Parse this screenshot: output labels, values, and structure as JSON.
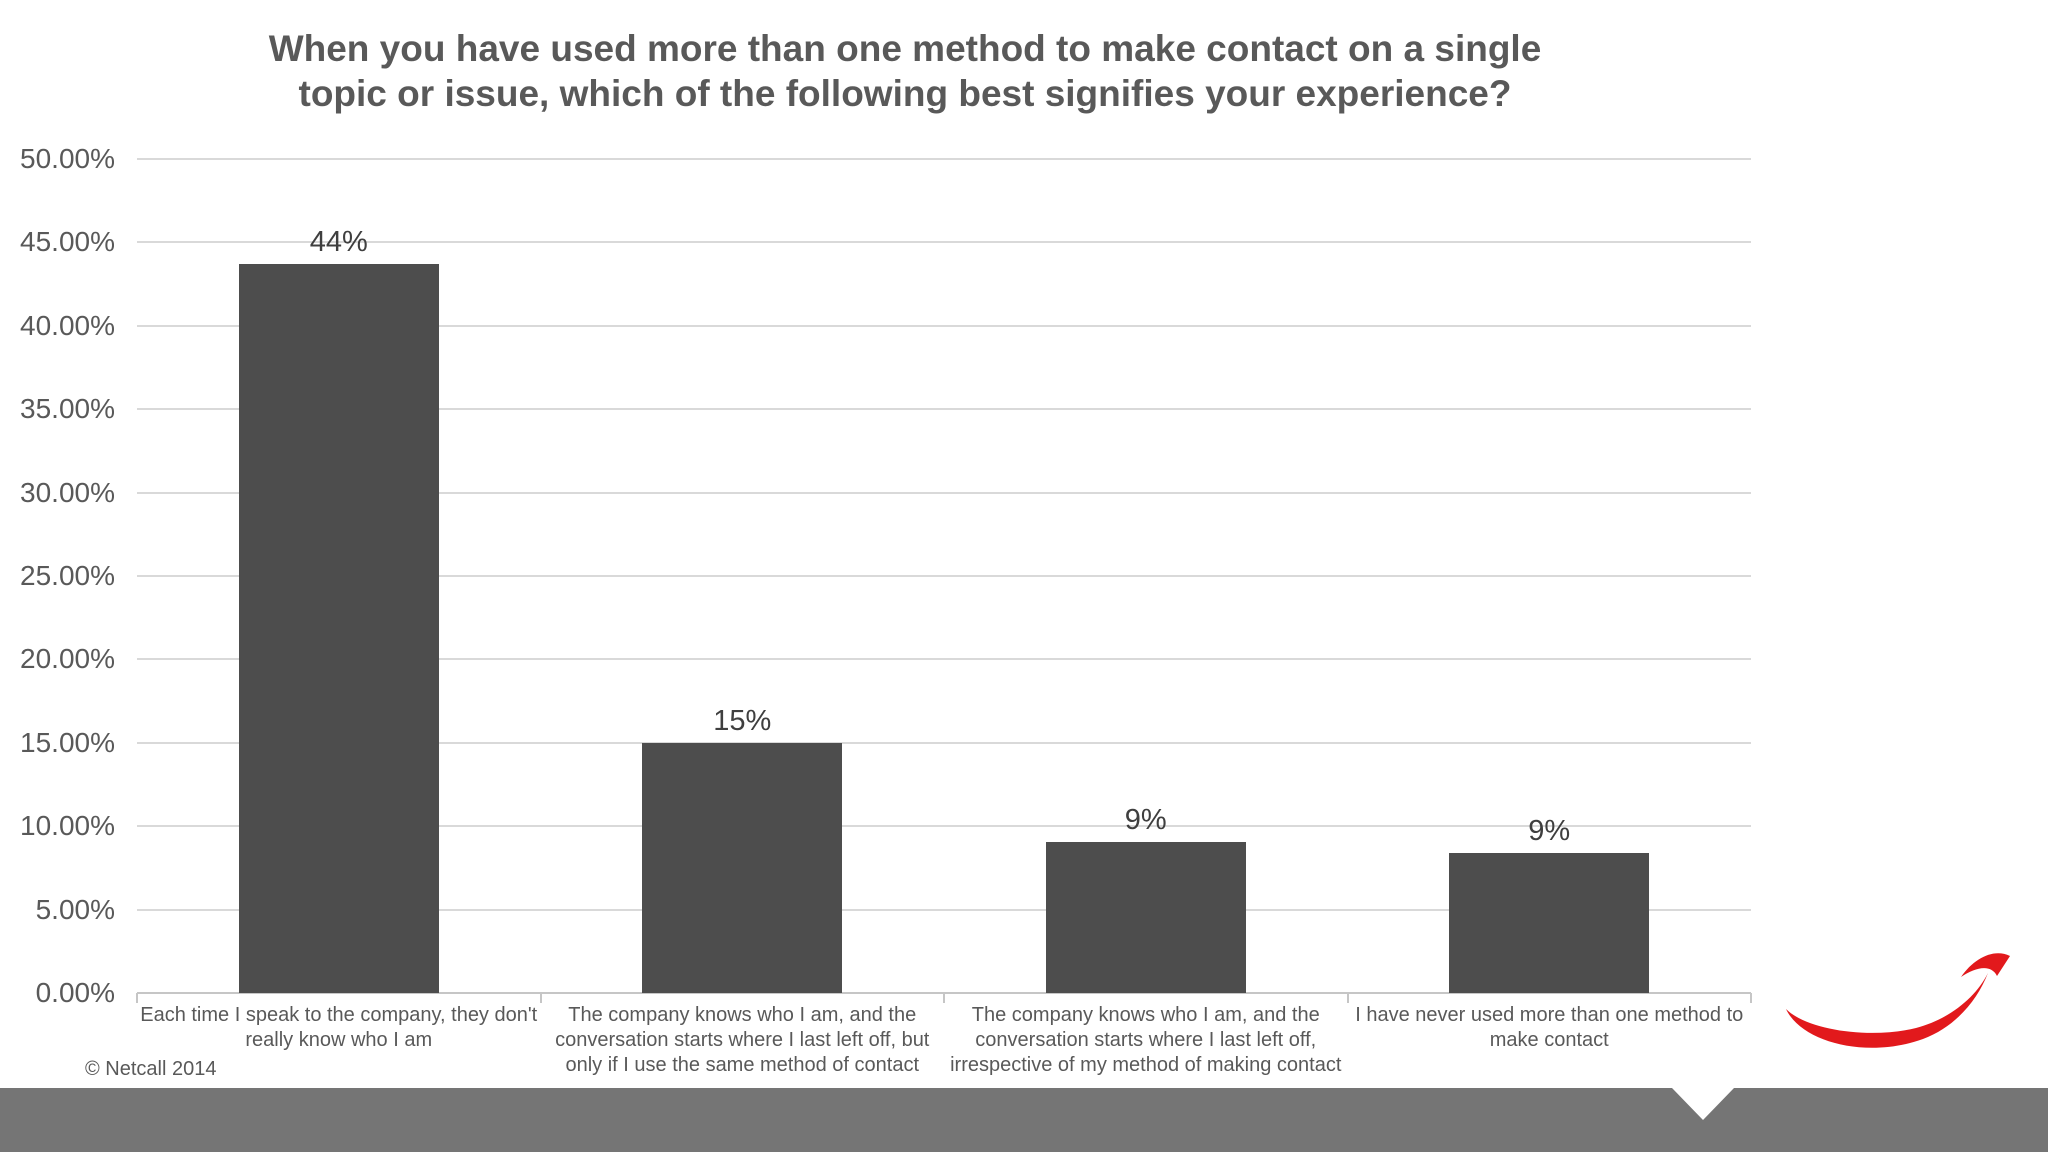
{
  "chart_data": {
    "type": "bar",
    "title": "When you have used more than one method to make contact on a single topic or issue, which of the following best signifies your experience?",
    "title_lines": [
      "When you have used more than one method to make contact on a single",
      "topic or issue, which of the following best signifies your experience?"
    ],
    "categories": [
      "Each time I speak to the company, they don't really know who I am",
      "The company knows who I am, and the conversation starts where I last left off, but only if I use the same method of contact",
      "The company knows who I am, and the conversation starts where I last left off, irrespective of my method of making contact",
      "I have never used more than one method to make contact"
    ],
    "values": [
      44,
      15,
      9,
      9
    ],
    "data_labels": [
      "44%",
      "15%",
      "9%",
      "9%"
    ],
    "bar_render_heights_pct": [
      43.7,
      15.0,
      9.05,
      8.4
    ],
    "y_axis_labels": [
      "50.00%",
      "45.00%",
      "40.00%",
      "35.00%",
      "30.00%",
      "25.00%",
      "20.00%",
      "15.00%",
      "10.00%",
      "5.00%",
      "0.00%"
    ],
    "ylim": [
      0,
      50
    ],
    "y_tick_step": 5,
    "grid": true,
    "legend": "none",
    "bar_color": "#4d4d4d"
  },
  "footer": {
    "copyright": "© Netcall 2014",
    "logo": "netcall-red-swoosh-arrow"
  },
  "colors": {
    "background": "#ffffff",
    "title_text": "#595959",
    "axis_text": "#595959",
    "data_label_text": "#3f3f3f",
    "bar": "#4d4d4d",
    "gridline": "#d9d9d9",
    "axis_line": "#c6c6c6",
    "footer_bar": "#757575",
    "logo_red": "#e2191c"
  }
}
